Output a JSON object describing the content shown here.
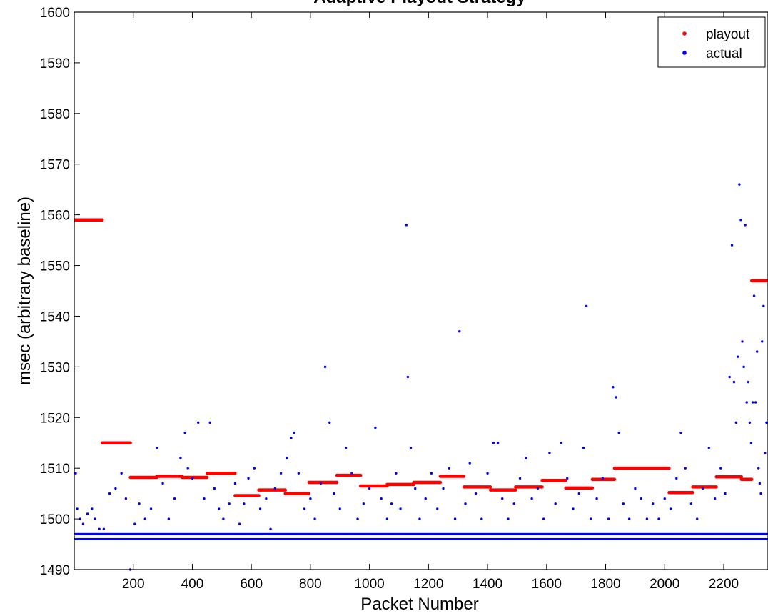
{
  "chart_data": {
    "type": "scatter",
    "title": "Adaptive Playout Strategy",
    "xlabel": "Packet Number",
    "ylabel": "msec (arbitrary baseline)",
    "xlim": [
      0,
      2350
    ],
    "ylim": [
      1490,
      1600
    ],
    "xticks": [
      200,
      400,
      600,
      800,
      1000,
      1200,
      1400,
      1600,
      1800,
      2000,
      2200
    ],
    "yticks": [
      1490,
      1500,
      1510,
      1520,
      1530,
      1540,
      1550,
      1560,
      1570,
      1580,
      1590,
      1600
    ],
    "grid": false,
    "legend_position": "top-right",
    "series": [
      {
        "name": "playout",
        "color": "#ff0000",
        "segments": [
          {
            "x_start": 0,
            "x_end": 95,
            "y": 1559
          },
          {
            "x_start": 95,
            "x_end": 190,
            "y": 1515
          },
          {
            "x_start": 190,
            "x_end": 280,
            "y": 1508.2
          },
          {
            "x_start": 280,
            "x_end": 365,
            "y": 1508.4
          },
          {
            "x_start": 365,
            "x_end": 450,
            "y": 1508.2
          },
          {
            "x_start": 450,
            "x_end": 545,
            "y": 1509
          },
          {
            "x_start": 545,
            "x_end": 625,
            "y": 1504.6
          },
          {
            "x_start": 625,
            "x_end": 715,
            "y": 1505.7
          },
          {
            "x_start": 715,
            "x_end": 795,
            "y": 1505
          },
          {
            "x_start": 795,
            "x_end": 890,
            "y": 1507.2
          },
          {
            "x_start": 890,
            "x_end": 970,
            "y": 1508.6
          },
          {
            "x_start": 970,
            "x_end": 1060,
            "y": 1506.5
          },
          {
            "x_start": 1060,
            "x_end": 1150,
            "y": 1506.8
          },
          {
            "x_start": 1150,
            "x_end": 1240,
            "y": 1507.2
          },
          {
            "x_start": 1240,
            "x_end": 1320,
            "y": 1508.4
          },
          {
            "x_start": 1320,
            "x_end": 1410,
            "y": 1506.3
          },
          {
            "x_start": 1410,
            "x_end": 1495,
            "y": 1505.7
          },
          {
            "x_start": 1495,
            "x_end": 1585,
            "y": 1506.3
          },
          {
            "x_start": 1585,
            "x_end": 1665,
            "y": 1507.6
          },
          {
            "x_start": 1665,
            "x_end": 1755,
            "y": 1506.1
          },
          {
            "x_start": 1755,
            "x_end": 1830,
            "y": 1507.8
          },
          {
            "x_start": 1830,
            "x_end": 2015,
            "y": 1510
          },
          {
            "x_start": 2015,
            "x_end": 2095,
            "y": 1505.2
          },
          {
            "x_start": 2095,
            "x_end": 2175,
            "y": 1506.3
          },
          {
            "x_start": 2175,
            "x_end": 2260,
            "y": 1508.3
          },
          {
            "x_start": 2260,
            "x_end": 2295,
            "y": 1507.8
          },
          {
            "x_start": 2295,
            "x_end": 2350,
            "y": 1547
          }
        ]
      },
      {
        "name": "actual",
        "color": "#0000ff",
        "description_of_distribution": "dense floor bands at 1496 and 1497 across all packets",
        "base_levels": [
          1496,
          1497
        ],
        "base_x_range": [
          0,
          2350
        ],
        "points": [
          [
            5,
            1509
          ],
          [
            10,
            1502
          ],
          [
            20,
            1500
          ],
          [
            30,
            1499
          ],
          [
            45,
            1501
          ],
          [
            60,
            1502
          ],
          [
            70,
            1500
          ],
          [
            85,
            1498
          ],
          [
            100,
            1498
          ],
          [
            120,
            1505
          ],
          [
            140,
            1506
          ],
          [
            160,
            1509
          ],
          [
            175,
            1504
          ],
          [
            190,
            1490
          ],
          [
            205,
            1499
          ],
          [
            220,
            1503
          ],
          [
            240,
            1500
          ],
          [
            260,
            1502
          ],
          [
            280,
            1514
          ],
          [
            300,
            1507
          ],
          [
            320,
            1500
          ],
          [
            340,
            1504
          ],
          [
            360,
            1512
          ],
          [
            375,
            1517
          ],
          [
            385,
            1510
          ],
          [
            400,
            1508
          ],
          [
            420,
            1519
          ],
          [
            440,
            1504
          ],
          [
            460,
            1519
          ],
          [
            475,
            1506
          ],
          [
            490,
            1502
          ],
          [
            505,
            1500
          ],
          [
            525,
            1503
          ],
          [
            545,
            1507
          ],
          [
            560,
            1499
          ],
          [
            575,
            1503
          ],
          [
            590,
            1508
          ],
          [
            610,
            1510
          ],
          [
            630,
            1502
          ],
          [
            650,
            1504
          ],
          [
            665,
            1498
          ],
          [
            680,
            1506
          ],
          [
            700,
            1509
          ],
          [
            720,
            1512
          ],
          [
            735,
            1516
          ],
          [
            745,
            1517
          ],
          [
            760,
            1509
          ],
          [
            780,
            1502
          ],
          [
            800,
            1504
          ],
          [
            815,
            1500
          ],
          [
            835,
            1507
          ],
          [
            850,
            1530
          ],
          [
            865,
            1519
          ],
          [
            880,
            1505
          ],
          [
            900,
            1502
          ],
          [
            920,
            1514
          ],
          [
            940,
            1509
          ],
          [
            960,
            1500
          ],
          [
            980,
            1503
          ],
          [
            1000,
            1506
          ],
          [
            1020,
            1518
          ],
          [
            1040,
            1504
          ],
          [
            1060,
            1500
          ],
          [
            1075,
            1503
          ],
          [
            1090,
            1509
          ],
          [
            1105,
            1502
          ],
          [
            1125,
            1558
          ],
          [
            1130,
            1528
          ],
          [
            1140,
            1514
          ],
          [
            1155,
            1506
          ],
          [
            1170,
            1500
          ],
          [
            1190,
            1504
          ],
          [
            1210,
            1509
          ],
          [
            1230,
            1502
          ],
          [
            1250,
            1506
          ],
          [
            1270,
            1510
          ],
          [
            1290,
            1500
          ],
          [
            1305,
            1537
          ],
          [
            1325,
            1503
          ],
          [
            1340,
            1511
          ],
          [
            1360,
            1505
          ],
          [
            1380,
            1500
          ],
          [
            1400,
            1509
          ],
          [
            1420,
            1515
          ],
          [
            1435,
            1515
          ],
          [
            1450,
            1504
          ],
          [
            1470,
            1500
          ],
          [
            1490,
            1503
          ],
          [
            1510,
            1508
          ],
          [
            1530,
            1512
          ],
          [
            1550,
            1504
          ],
          [
            1570,
            1506
          ],
          [
            1590,
            1500
          ],
          [
            1610,
            1513
          ],
          [
            1630,
            1503
          ],
          [
            1650,
            1515
          ],
          [
            1670,
            1508
          ],
          [
            1690,
            1502
          ],
          [
            1710,
            1505
          ],
          [
            1725,
            1514
          ],
          [
            1735,
            1542
          ],
          [
            1750,
            1500
          ],
          [
            1770,
            1504
          ],
          [
            1790,
            1508
          ],
          [
            1810,
            1500
          ],
          [
            1825,
            1526
          ],
          [
            1835,
            1524
          ],
          [
            1845,
            1517
          ],
          [
            1860,
            1503
          ],
          [
            1880,
            1500
          ],
          [
            1900,
            1506
          ],
          [
            1920,
            1504
          ],
          [
            1940,
            1500
          ],
          [
            1960,
            1503
          ],
          [
            1980,
            1500
          ],
          [
            2000,
            1504
          ],
          [
            2020,
            1502
          ],
          [
            2040,
            1508
          ],
          [
            2055,
            1517
          ],
          [
            2070,
            1510
          ],
          [
            2090,
            1503
          ],
          [
            2110,
            1500
          ],
          [
            2130,
            1506
          ],
          [
            2150,
            1514
          ],
          [
            2170,
            1504
          ],
          [
            2190,
            1510
          ],
          [
            2205,
            1505
          ],
          [
            2220,
            1528
          ],
          [
            2228,
            1554
          ],
          [
            2235,
            1527
          ],
          [
            2242,
            1519
          ],
          [
            2248,
            1532
          ],
          [
            2253,
            1566
          ],
          [
            2258,
            1559
          ],
          [
            2263,
            1535
          ],
          [
            2268,
            1530
          ],
          [
            2273,
            1558
          ],
          [
            2278,
            1523
          ],
          [
            2283,
            1527
          ],
          [
            2288,
            1519
          ],
          [
            2293,
            1515
          ],
          [
            2298,
            1523
          ],
          [
            2303,
            1544
          ],
          [
            2308,
            1523
          ],
          [
            2313,
            1533
          ],
          [
            2318,
            1510
          ],
          [
            2322,
            1507
          ],
          [
            2326,
            1505
          ],
          [
            2330,
            1535
          ],
          [
            2335,
            1542
          ],
          [
            2340,
            1513
          ],
          [
            2345,
            1519
          ]
        ]
      }
    ]
  }
}
